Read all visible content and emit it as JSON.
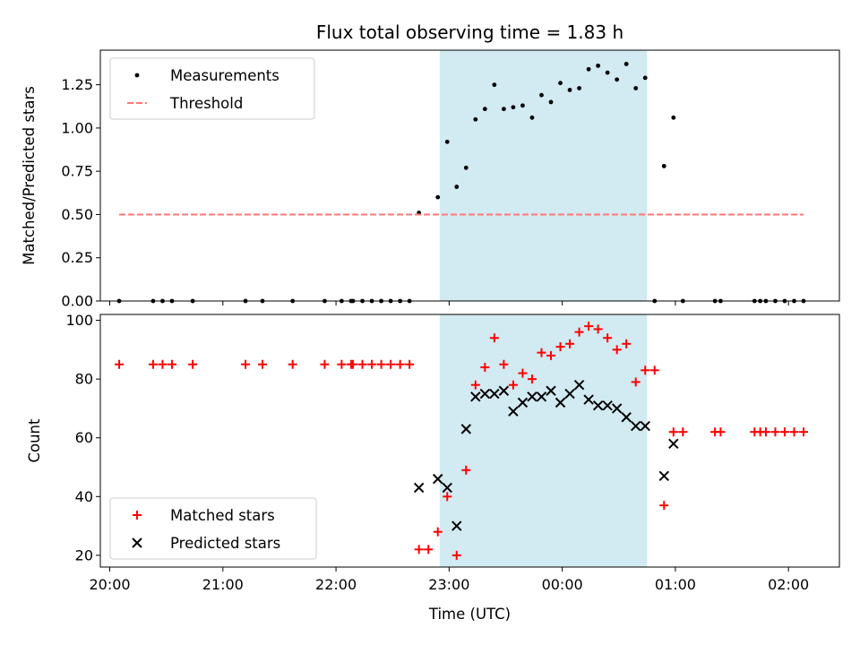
{
  "chart_data": {
    "title": "Flux total observing time = 1.83 h",
    "shade_color": "#add8e6",
    "xlabel": "Time (UTC)",
    "x_range": [
      "19:55",
      "02:27"
    ],
    "x_ticks": [
      "20:00",
      "21:00",
      "22:00",
      "23:00",
      "00:00",
      "01:00",
      "02:00"
    ],
    "shaded_interval": [
      "22:55",
      "00:45"
    ],
    "panels": [
      {
        "type": "scatter",
        "ylabel": "Matched/Predicted stars",
        "ylim": [
          0,
          1.45
        ],
        "y_ticks": [
          "0.00",
          "0.25",
          "0.50",
          "0.75",
          "1.00",
          "1.25"
        ],
        "legend_position": "upper-left",
        "series": [
          {
            "name": "Measurements",
            "marker": "dot",
            "color": "#000000",
            "points": [
              [
                "20:05",
                0
              ],
              [
                "20:23",
                0
              ],
              [
                "20:28",
                0
              ],
              [
                "20:33",
                0
              ],
              [
                "20:44",
                0
              ],
              [
                "21:12",
                0
              ],
              [
                "21:21",
                0
              ],
              [
                "21:37",
                0
              ],
              [
                "21:54",
                0
              ],
              [
                "22:03",
                0
              ],
              [
                "22:08",
                0
              ],
              [
                "22:09",
                0
              ],
              [
                "22:14",
                0
              ],
              [
                "22:19",
                0
              ],
              [
                "22:24",
                0
              ],
              [
                "22:29",
                0
              ],
              [
                "22:34",
                0
              ],
              [
                "22:39",
                0
              ],
              [
                "22:44",
                0.51
              ],
              [
                "22:54",
                0.6
              ],
              [
                "22:59",
                0.92
              ],
              [
                "23:04",
                0.66
              ],
              [
                "23:09",
                0.77
              ],
              [
                "23:14",
                1.05
              ],
              [
                "23:19",
                1.11
              ],
              [
                "23:24",
                1.25
              ],
              [
                "23:29",
                1.11
              ],
              [
                "23:34",
                1.12
              ],
              [
                "23:39",
                1.13
              ],
              [
                "23:44",
                1.06
              ],
              [
                "23:49",
                1.19
              ],
              [
                "23:54",
                1.15
              ],
              [
                "23:59",
                1.26
              ],
              [
                "00:04",
                1.22
              ],
              [
                "00:09",
                1.23
              ],
              [
                "00:14",
                1.34
              ],
              [
                "00:19",
                1.36
              ],
              [
                "00:24",
                1.32
              ],
              [
                "00:29",
                1.28
              ],
              [
                "00:34",
                1.37
              ],
              [
                "00:39",
                1.23
              ],
              [
                "00:44",
                1.29
              ],
              [
                "00:49",
                0
              ],
              [
                "00:54",
                0.78
              ],
              [
                "00:59",
                1.06
              ],
              [
                "01:04",
                0
              ],
              [
                "01:21",
                0
              ],
              [
                "01:24",
                0
              ],
              [
                "01:42",
                0
              ],
              [
                "01:45",
                0
              ],
              [
                "01:48",
                0
              ],
              [
                "01:53",
                0
              ],
              [
                "01:58",
                0
              ],
              [
                "02:03",
                0
              ],
              [
                "02:08",
                0
              ]
            ]
          },
          {
            "name": "Threshold",
            "marker": "dashed-line",
            "color": "#ff7777",
            "points": [
              [
                "20:05",
                0.5
              ],
              [
                "02:08",
                0.5
              ]
            ]
          }
        ]
      },
      {
        "type": "scatter",
        "ylabel": "Count",
        "ylim": [
          16,
          102
        ],
        "y_ticks": [
          "20",
          "40",
          "60",
          "80",
          "100"
        ],
        "legend_position": "lower-left",
        "series": [
          {
            "name": "Matched stars",
            "marker": "plus",
            "color": "#ff0000",
            "points": [
              [
                "20:05",
                85
              ],
              [
                "20:23",
                85
              ],
              [
                "20:28",
                85
              ],
              [
                "20:33",
                85
              ],
              [
                "20:44",
                85
              ],
              [
                "21:12",
                85
              ],
              [
                "21:21",
                85
              ],
              [
                "21:37",
                85
              ],
              [
                "21:54",
                85
              ],
              [
                "22:03",
                85
              ],
              [
                "22:08",
                85
              ],
              [
                "22:09",
                85
              ],
              [
                "22:14",
                85
              ],
              [
                "22:19",
                85
              ],
              [
                "22:24",
                85
              ],
              [
                "22:29",
                85
              ],
              [
                "22:34",
                85
              ],
              [
                "22:39",
                85
              ],
              [
                "22:44",
                22
              ],
              [
                "22:49",
                22
              ],
              [
                "22:54",
                28
              ],
              [
                "22:59",
                40
              ],
              [
                "23:04",
                20
              ],
              [
                "23:09",
                49
              ],
              [
                "23:14",
                78
              ],
              [
                "23:19",
                84
              ],
              [
                "23:24",
                94
              ],
              [
                "23:29",
                85
              ],
              [
                "23:34",
                78
              ],
              [
                "23:39",
                82
              ],
              [
                "23:44",
                80
              ],
              [
                "23:49",
                89
              ],
              [
                "23:54",
                88
              ],
              [
                "23:59",
                91
              ],
              [
                "00:04",
                92
              ],
              [
                "00:09",
                96
              ],
              [
                "00:14",
                98
              ],
              [
                "00:19",
                97
              ],
              [
                "00:24",
                94
              ],
              [
                "00:29",
                90
              ],
              [
                "00:34",
                92
              ],
              [
                "00:39",
                79
              ],
              [
                "00:44",
                83
              ],
              [
                "00:49",
                83
              ],
              [
                "00:54",
                37
              ],
              [
                "00:59",
                62
              ],
              [
                "01:04",
                62
              ],
              [
                "01:21",
                62
              ],
              [
                "01:24",
                62
              ],
              [
                "01:42",
                62
              ],
              [
                "01:45",
                62
              ],
              [
                "01:48",
                62
              ],
              [
                "01:53",
                62
              ],
              [
                "01:58",
                62
              ],
              [
                "02:03",
                62
              ],
              [
                "02:08",
                62
              ]
            ]
          },
          {
            "name": "Predicted stars",
            "marker": "x",
            "color": "#000000",
            "points": [
              [
                "22:44",
                43
              ],
              [
                "22:54",
                46
              ],
              [
                "22:59",
                43
              ],
              [
                "23:04",
                30
              ],
              [
                "23:09",
                63
              ],
              [
                "23:14",
                74
              ],
              [
                "23:19",
                75
              ],
              [
                "23:24",
                75
              ],
              [
                "23:29",
                76
              ],
              [
                "23:34",
                69
              ],
              [
                "23:39",
                72
              ],
              [
                "23:44",
                74
              ],
              [
                "23:49",
                74
              ],
              [
                "23:54",
                76
              ],
              [
                "23:59",
                72
              ],
              [
                "00:04",
                75
              ],
              [
                "00:09",
                78
              ],
              [
                "00:14",
                73
              ],
              [
                "00:19",
                71
              ],
              [
                "00:24",
                71
              ],
              [
                "00:29",
                70
              ],
              [
                "00:34",
                67
              ],
              [
                "00:39",
                64
              ],
              [
                "00:44",
                64
              ],
              [
                "00:54",
                47
              ],
              [
                "00:59",
                58
              ]
            ]
          }
        ]
      }
    ]
  }
}
